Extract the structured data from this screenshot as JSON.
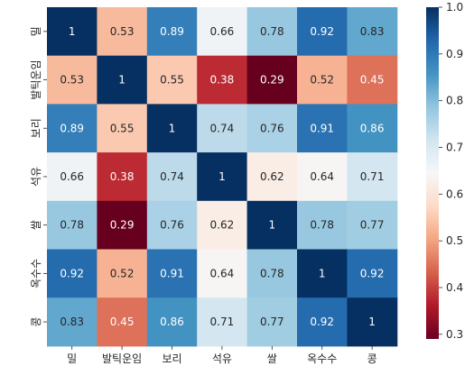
{
  "chart_data": {
    "type": "heatmap",
    "title": "",
    "xlabel": "",
    "ylabel": "",
    "x_categories": [
      "밀",
      "발틱운임",
      "보리",
      "석유",
      "쌀",
      "옥수수",
      "콩"
    ],
    "y_categories": [
      "밀",
      "발틱운임",
      "보리",
      "석유",
      "쌀",
      "옥수수",
      "콩"
    ],
    "values": [
      [
        1,
        0.53,
        0.89,
        0.66,
        0.78,
        0.92,
        0.83
      ],
      [
        0.53,
        1,
        0.55,
        0.38,
        0.29,
        0.52,
        0.45
      ],
      [
        0.89,
        0.55,
        1,
        0.74,
        0.76,
        0.91,
        0.86
      ],
      [
        0.66,
        0.38,
        0.74,
        1,
        0.62,
        0.64,
        0.71
      ],
      [
        0.78,
        0.29,
        0.76,
        0.62,
        1,
        0.78,
        0.77
      ],
      [
        0.92,
        0.52,
        0.91,
        0.64,
        0.78,
        1,
        0.92
      ],
      [
        0.83,
        0.45,
        0.86,
        0.71,
        0.77,
        0.92,
        1
      ]
    ],
    "annotations": true,
    "colormap": "RdBu",
    "vmin": 0.29,
    "vmax": 1.0,
    "colorbar_ticks": [
      0.3,
      0.4,
      0.5,
      0.6,
      0.7,
      0.8,
      0.9,
      1.0
    ],
    "colorbar_tick_labels": [
      "0.3",
      "0.4",
      "0.5",
      "0.6",
      "0.7",
      "0.8",
      "0.9",
      "1.0"
    ]
  }
}
